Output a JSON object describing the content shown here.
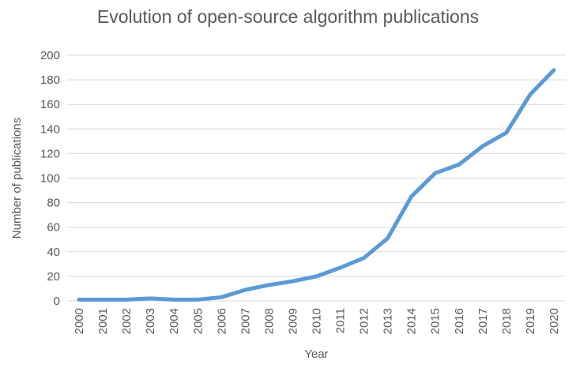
{
  "chart_data": {
    "type": "line",
    "title": "Evolution of open-source algorithm publications",
    "xlabel": "Year",
    "ylabel": "Number of publications",
    "categories": [
      "2000",
      "2001",
      "2002",
      "2003",
      "2004",
      "2005",
      "2006",
      "2007",
      "2008",
      "2009",
      "2010",
      "2011",
      "2012",
      "2013",
      "2014",
      "2015",
      "2016",
      "2017",
      "2018",
      "2019",
      "2020"
    ],
    "series": [
      {
        "name": "Number of publications",
        "values": [
          1,
          1,
          1,
          2,
          1,
          1,
          3,
          9,
          13,
          16,
          20,
          27,
          35,
          51,
          85,
          104,
          111,
          126,
          137,
          168,
          188
        ]
      }
    ],
    "ylim": [
      0,
      200
    ],
    "ytick_step": 20,
    "grid": true,
    "legend": "none",
    "colors": {
      "line": "#5B9BD5",
      "gridline": "#D9D9D9",
      "axis_line": "#D9D9D9",
      "text": "#595959",
      "background": "#FFFFFF"
    }
  }
}
